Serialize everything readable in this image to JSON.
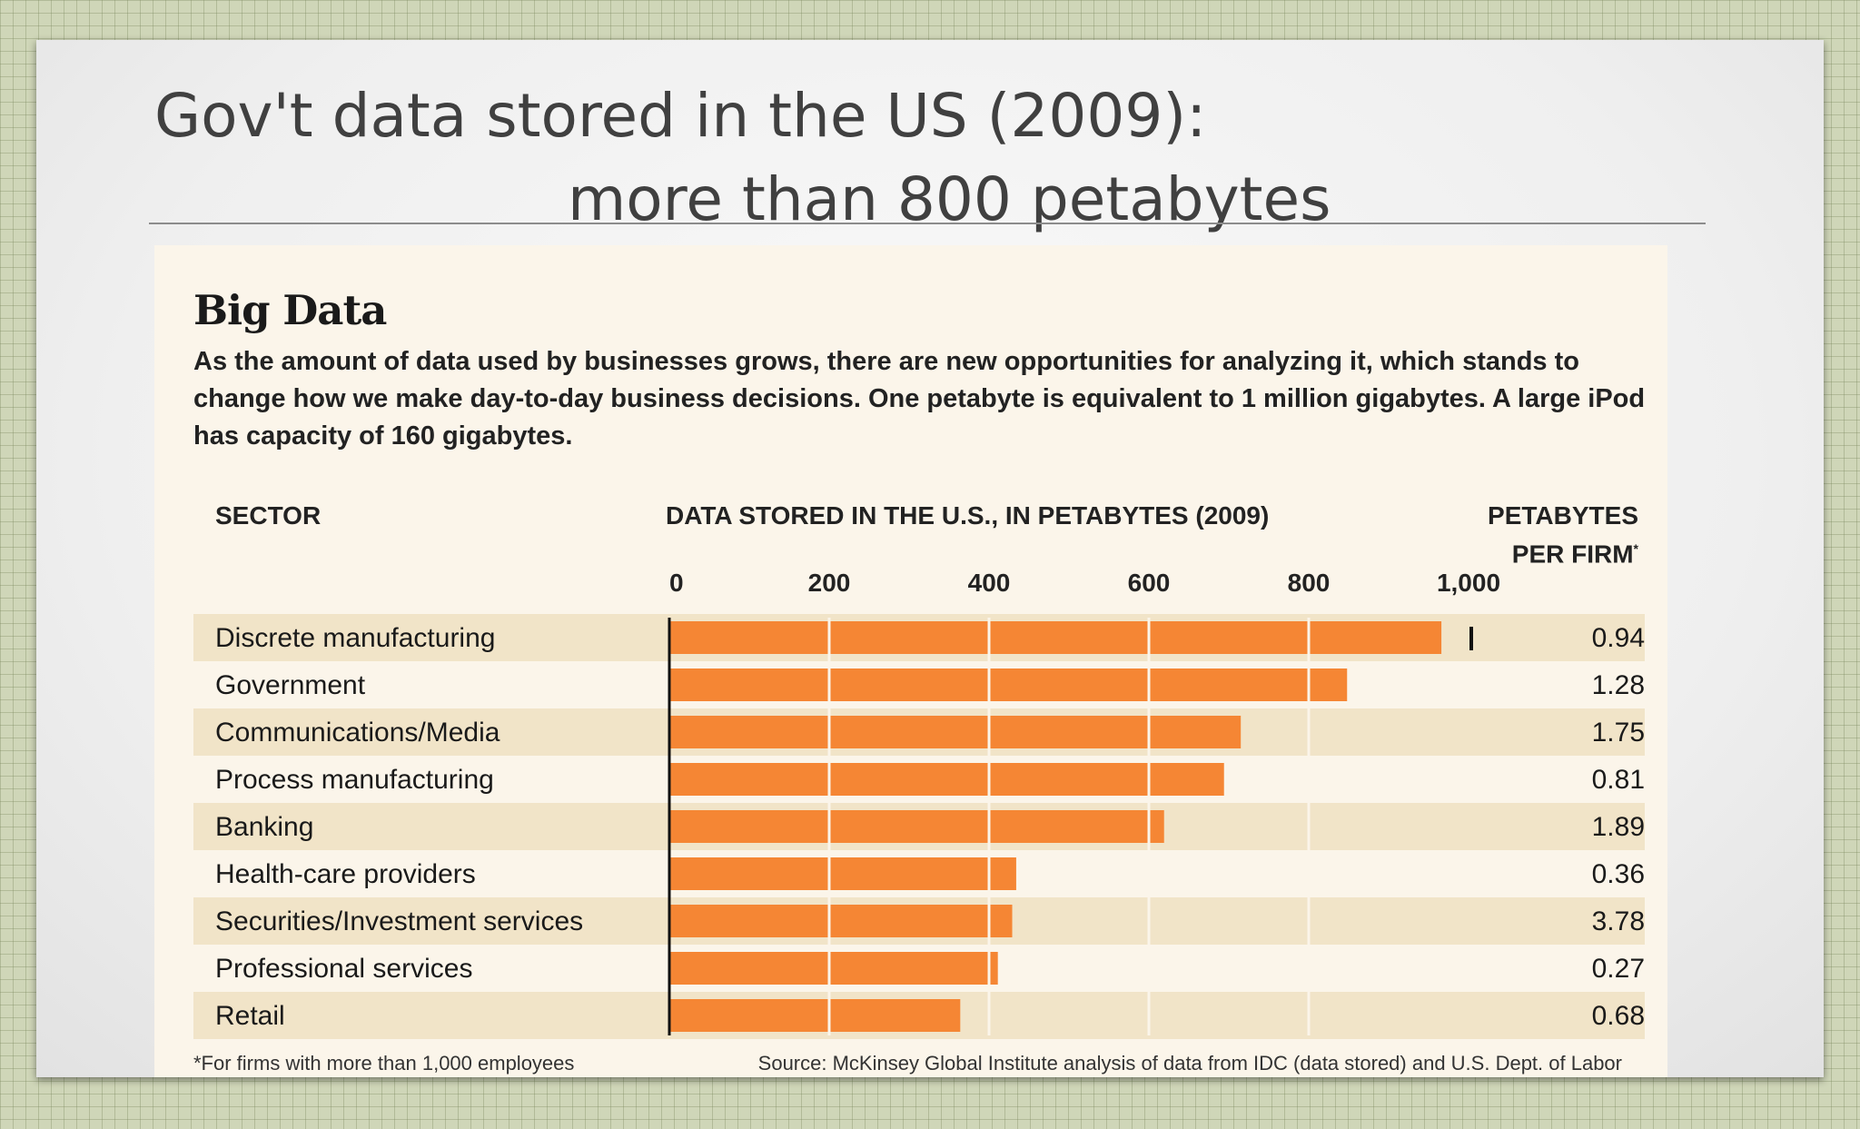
{
  "slide": {
    "title_line1": "Gov't data stored in the US (2009):",
    "title_line2": "more than 800 petabytes"
  },
  "figure": {
    "title": "Big Data",
    "subtitle": "As the amount of data used by businesses grows, there are new opportunities for analyzing it, which stands to change how we make day-to-day business decisions. One petabyte is equivalent to 1 million gigabytes. A large iPod has capacity of 160 gigabytes.",
    "col_sector": "SECTOR",
    "col_data": "DATA STORED IN THE U.S., IN PETABYTES (2009)",
    "col_ppf_line1": "PETABYTES",
    "col_ppf_line2": "PER FIRM",
    "col_ppf_mark": "*",
    "footnote": "*For firms with more than 1,000 employees",
    "source": "Source: McKinsey Global Institute analysis of data from IDC (data stored) and U.S. Dept. of Labor"
  },
  "chart_data": {
    "type": "bar",
    "orientation": "horizontal",
    "title": "Big Data",
    "xlabel": "DATA STORED IN THE U.S., IN PETABYTES (2009)",
    "ylabel": "SECTOR",
    "xlim": [
      0,
      1000
    ],
    "ticks": [
      0,
      200,
      400,
      600,
      800,
      1000
    ],
    "tick_labels": [
      "0",
      "200",
      "400",
      "600",
      "800",
      "1,000"
    ],
    "categories": [
      "Discrete manufacturing",
      "Government",
      "Communications/Media",
      "Process manufacturing",
      "Banking",
      "Health-care providers",
      "Securities/Investment services",
      "Professional services",
      "Retail"
    ],
    "values": [
      966,
      848,
      715,
      694,
      619,
      434,
      429,
      411,
      364
    ],
    "petabytes_per_firm": [
      "0.94",
      "1.28",
      "1.75",
      "0.81",
      "1.89",
      "0.36",
      "3.78",
      "0.27",
      "0.68"
    ],
    "bar_color": "#f58634",
    "stripe_color": "#f1e4c8",
    "grid": true,
    "marker_at": 1000
  }
}
